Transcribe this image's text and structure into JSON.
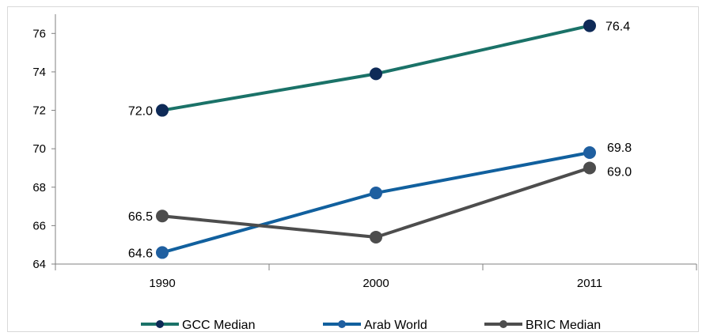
{
  "chart_data": {
    "type": "line",
    "title": "",
    "xlabel": "",
    "ylabel": "",
    "categories": [
      "1990",
      "2000",
      "2011"
    ],
    "ylim": [
      64,
      77
    ],
    "yticks": [
      "64",
      "66",
      "68",
      "70",
      "72",
      "74",
      "76"
    ],
    "grid": false,
    "legend_position": "bottom",
    "series": [
      {
        "name": "GCC Median",
        "values": [
          72.0,
          73.9,
          76.4
        ],
        "color": "#1a7268",
        "marker_color": "#0e2a57",
        "labels": [
          "72.0",
          "",
          "76.4"
        ]
      },
      {
        "name": "Arab World",
        "values": [
          64.6,
          67.7,
          69.8
        ],
        "color": "#11609e",
        "marker_color": "#1f5fa0",
        "labels": [
          "64.6",
          "",
          "69.8"
        ]
      },
      {
        "name": "BRIC Median",
        "values": [
          66.5,
          65.4,
          69.0
        ],
        "color": "#4d4d4d",
        "marker_color": "#4d4d4d",
        "labels": [
          "66.5",
          "",
          "69.0"
        ]
      }
    ]
  }
}
